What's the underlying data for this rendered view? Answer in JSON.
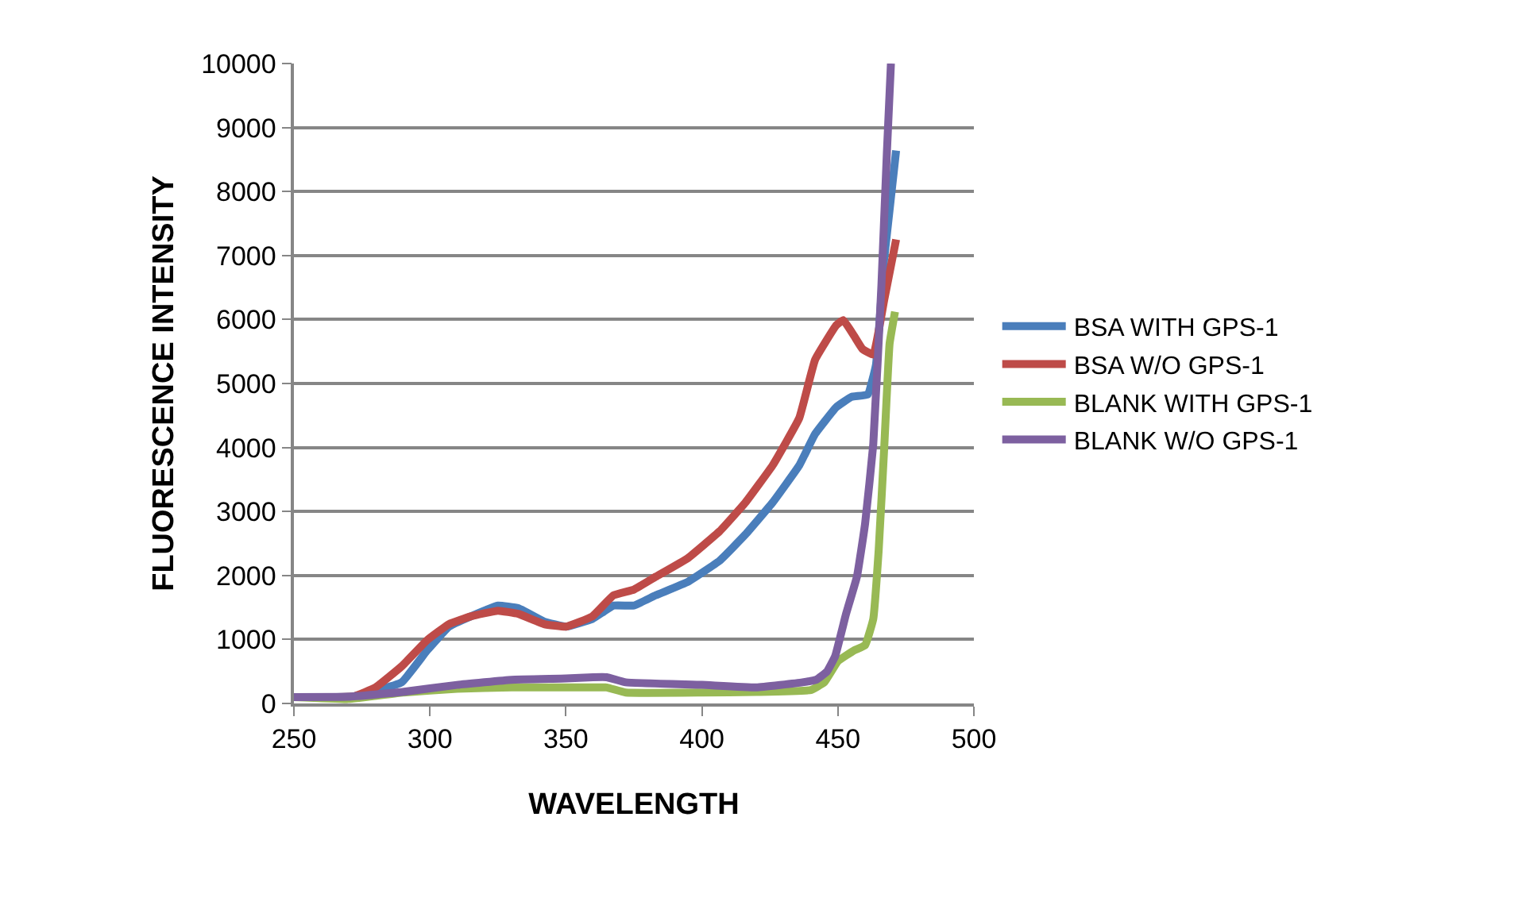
{
  "chart_data": {
    "type": "line",
    "xlabel": "WAVELENGTH",
    "ylabel": "FLUORESCENCE INTENSITY",
    "xlim": [
      250,
      500
    ],
    "xticks": [
      250,
      300,
      350,
      400,
      450,
      500
    ],
    "ylim": [
      0,
      10000
    ],
    "yticks": [
      0,
      1000,
      2000,
      3000,
      4000,
      5000,
      6000,
      7000,
      8000,
      9000,
      10000
    ],
    "grid": "y",
    "legend": "right",
    "marker": "none",
    "line_style": "solid",
    "series": [
      {
        "name": "BSA WITH GPS-1",
        "color": "#4a7ebb",
        "x": [
          250,
          272,
          289.6,
          299,
          307,
          315,
          325,
          332.5,
          342,
          350,
          359.7,
          367.5,
          375,
          383,
          394.8,
          406.5,
          416,
          426,
          435.8,
          441.6,
          449.4,
          455,
          461,
          464,
          467,
          471.4
        ],
        "values": [
          100,
          110,
          330,
          830,
          1200,
          1360,
          1530,
          1490,
          1280,
          1200,
          1320,
          1530,
          1530,
          1690,
          1900,
          2230,
          2640,
          3140,
          3720,
          4210,
          4630,
          4790,
          4830,
          5290,
          6940,
          8640
        ]
      },
      {
        "name": "BSA W/O GPS-1",
        "color": "#be4b48",
        "x": [
          250,
          272,
          280,
          289.6,
          299,
          307,
          315,
          325,
          332.5,
          342,
          350,
          359.7,
          367.5,
          375,
          383,
          394.8,
          406.5,
          416,
          426,
          435.8,
          441.6,
          449.4,
          452,
          456,
          459,
          463,
          467,
          471.4
        ],
        "values": [
          100,
          110,
          250,
          580,
          990,
          1240,
          1360,
          1450,
          1400,
          1240,
          1200,
          1360,
          1690,
          1780,
          1980,
          2270,
          2690,
          3140,
          3720,
          4460,
          5370,
          5910,
          5990,
          5740,
          5540,
          5450,
          6300,
          7250
        ]
      },
      {
        "name": "BLANK WITH GPS-1",
        "color": "#98b954",
        "x": [
          250,
          270,
          290,
          310,
          330,
          360,
          365,
          372,
          400,
          420,
          440,
          445,
          450,
          456,
          460,
          463,
          465,
          467,
          469,
          471
        ],
        "values": [
          100,
          70,
          170,
          230,
          250,
          250,
          250,
          170,
          170,
          180,
          210,
          330,
          660,
          830,
          910,
          1320,
          2400,
          3970,
          5620,
          6120
        ]
      },
      {
        "name": "BLANK W/O GPS-1",
        "color": "#7d60a0",
        "x": [
          250,
          270,
          290,
          310,
          330,
          350,
          360,
          365,
          372,
          400,
          420,
          437,
          442,
          446,
          449,
          453,
          457,
          460,
          463,
          466,
          468,
          469.5
        ],
        "values": [
          100,
          105,
          180,
          290,
          370,
          390,
          410,
          410,
          330,
          290,
          250,
          330,
          370,
          500,
          740,
          1400,
          1980,
          2810,
          4050,
          6530,
          8600,
          10000
        ]
      }
    ]
  }
}
